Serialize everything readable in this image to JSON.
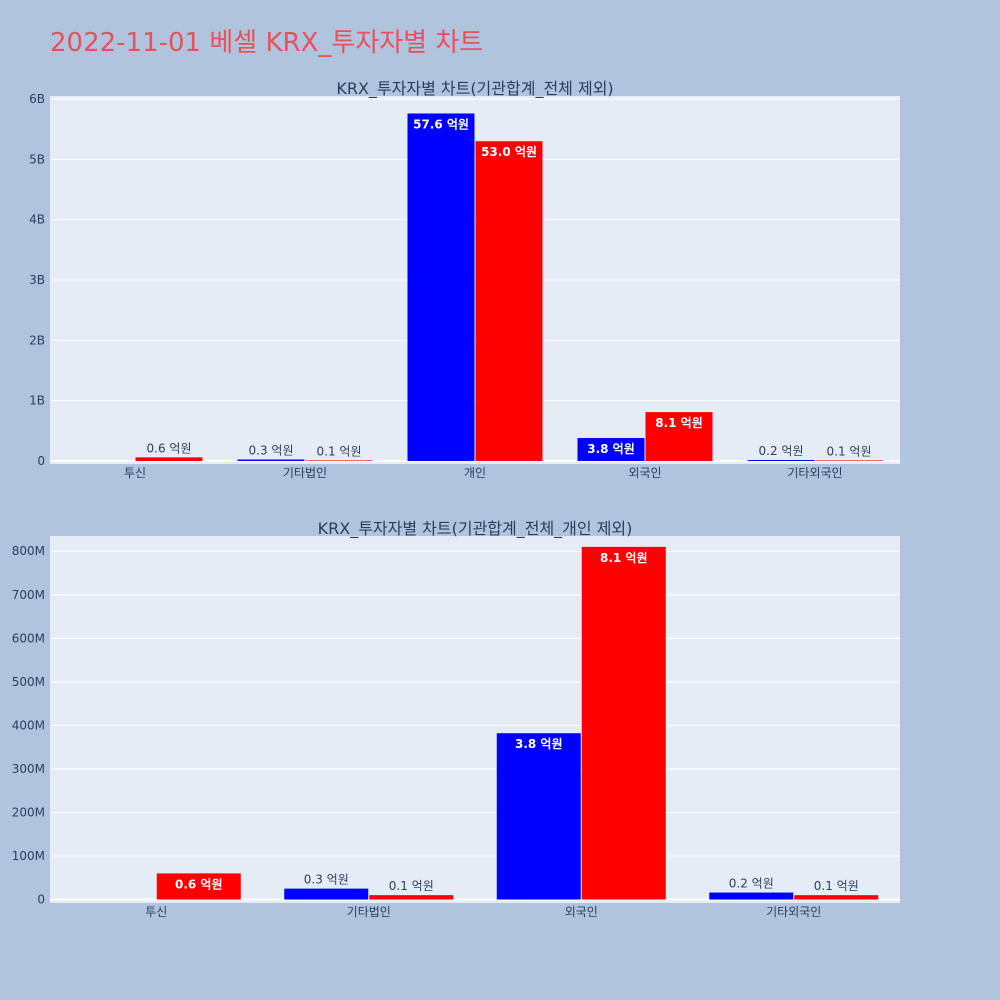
{
  "title": "2022-11-01 베셀 KRX_투자자별 차트",
  "colors": {
    "background": "#b0c4de",
    "plot_bg": "#e5ecf6",
    "series_a": "#0000ff",
    "series_b": "#ff0000",
    "title": "#e8505b"
  },
  "chart_data": [
    {
      "type": "bar",
      "title": "KRX_투자자별 차트(기관합계_전체 제외)",
      "categories": [
        "투신",
        "기타법인",
        "개인",
        "외국인",
        "기타외국인"
      ],
      "series": [
        {
          "values": [
            0,
            25000000,
            5760000000,
            380000000,
            16000000
          ],
          "labels": [
            "",
            "0.3 억원",
            "57.6 억원",
            "3.8 억원",
            "0.2 억원"
          ]
        },
        {
          "values": [
            60000000,
            10000000,
            5300000000,
            810000000,
            10000000
          ],
          "labels": [
            "0.6 억원",
            "0.1 억원",
            "53.0 억원",
            "8.1 억원",
            "0.1 억원"
          ]
        }
      ],
      "yticks": [
        0,
        1000000000,
        2000000000,
        3000000000,
        4000000000,
        5000000000,
        6000000000
      ],
      "ytick_labels": [
        "0",
        "1B",
        "2B",
        "3B",
        "4B",
        "5B",
        "6B"
      ],
      "ylim": [
        -50000000,
        6050000000
      ],
      "grid": true,
      "legend": false
    },
    {
      "type": "bar",
      "title": "KRX_투자자별 차트(기관합계_전체_개인 제외)",
      "categories": [
        "투신",
        "기타법인",
        "외국인",
        "기타외국인"
      ],
      "series": [
        {
          "values": [
            0,
            25000000,
            382000000,
            16000000
          ],
          "labels": [
            "",
            "0.3 억원",
            "3.8 억원",
            "0.2 억원"
          ]
        },
        {
          "values": [
            60000000,
            10000000,
            810000000,
            10000000
          ],
          "labels": [
            "0.6 억원",
            "0.1 억원",
            "8.1 억원",
            "0.1 억원"
          ]
        }
      ],
      "yticks": [
        0,
        100000000,
        200000000,
        300000000,
        400000000,
        500000000,
        600000000,
        700000000,
        800000000
      ],
      "ytick_labels": [
        "0",
        "100M",
        "200M",
        "300M",
        "400M",
        "500M",
        "600M",
        "700M",
        "800M"
      ],
      "ylim": [
        -8000000,
        835000000
      ],
      "grid": true,
      "legend": false
    }
  ]
}
